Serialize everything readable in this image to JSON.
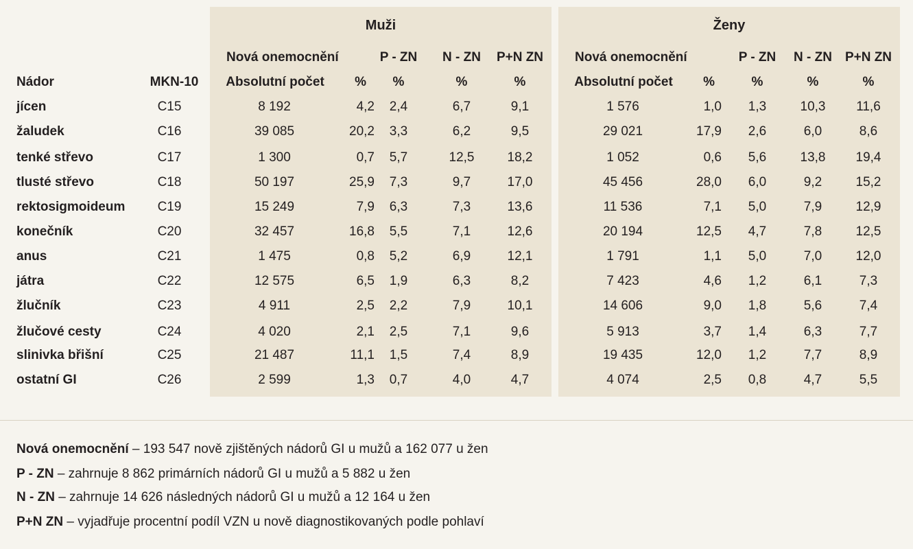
{
  "groups": {
    "men": "Muži",
    "women": "Ženy"
  },
  "subheaders": {
    "new_cases": "Nová onemocnění",
    "p_zn": "P - ZN",
    "n_zn": "N - ZN",
    "pn_zn": "P+N ZN"
  },
  "columns": {
    "tumor": "Nádor",
    "mkn": "MKN-10",
    "abs": "Absolutní počet",
    "pct": "%"
  },
  "rows": [
    {
      "tumor": "jícen",
      "code": "C15",
      "m_abs": "8 192",
      "m_pct": "4,2",
      "m_p": "2,4",
      "m_n": "6,7",
      "m_pn": "9,1",
      "w_abs": "1 576",
      "w_pct": "1,0",
      "w_p": "1,3",
      "w_n": "10,3",
      "w_pn": "11,6"
    },
    {
      "tumor": "žaludek",
      "code": "C16",
      "m_abs": "39 085",
      "m_pct": "20,2",
      "m_p": "3,3",
      "m_n": "6,2",
      "m_pn": "9,5",
      "w_abs": "29 021",
      "w_pct": "17,9",
      "w_p": "2,6",
      "w_n": "6,0",
      "w_pn": "8,6"
    },
    {
      "tumor": "tenké střevo",
      "code": "C17",
      "m_abs": "1 300",
      "m_pct": "0,7",
      "m_p": "5,7",
      "m_n": "12,5",
      "m_pn": "18,2",
      "w_abs": "1 052",
      "w_pct": "0,6",
      "w_p": "5,6",
      "w_n": "13,8",
      "w_pn": "19,4"
    },
    {
      "tumor": "tlusté střevo",
      "code": "C18",
      "m_abs": "50 197",
      "m_pct": "25,9",
      "m_p": "7,3",
      "m_n": "9,7",
      "m_pn": "17,0",
      "w_abs": "45 456",
      "w_pct": "28,0",
      "w_p": "6,0",
      "w_n": "9,2",
      "w_pn": "15,2"
    },
    {
      "tumor": "rektosigmoideum",
      "code": "C19",
      "m_abs": "15 249",
      "m_pct": "7,9",
      "m_p": "6,3",
      "m_n": "7,3",
      "m_pn": "13,6",
      "w_abs": "11 536",
      "w_pct": "7,1",
      "w_p": "5,0",
      "w_n": "7,9",
      "w_pn": "12,9"
    },
    {
      "tumor": "konečník",
      "code": "C20",
      "m_abs": "32 457",
      "m_pct": "16,8",
      "m_p": "5,5",
      "m_n": "7,1",
      "m_pn": "12,6",
      "w_abs": "20 194",
      "w_pct": "12,5",
      "w_p": "4,7",
      "w_n": "7,8",
      "w_pn": "12,5"
    },
    {
      "tumor": "anus",
      "code": "C21",
      "m_abs": "1 475",
      "m_pct": "0,8",
      "m_p": "5,2",
      "m_n": "6,9",
      "m_pn": "12,1",
      "w_abs": "1 791",
      "w_pct": "1,1",
      "w_p": "5,0",
      "w_n": "7,0",
      "w_pn": "12,0"
    },
    {
      "tumor": "játra",
      "code": "C22",
      "m_abs": "12 575",
      "m_pct": "6,5",
      "m_p": "1,9",
      "m_n": "6,3",
      "m_pn": "8,2",
      "w_abs": "7 423",
      "w_pct": "4,6",
      "w_p": "1,2",
      "w_n": "6,1",
      "w_pn": "7,3"
    },
    {
      "tumor": "žlučník",
      "code": "C23",
      "m_abs": "4 911",
      "m_pct": "2,5",
      "m_p": "2,2",
      "m_n": "7,9",
      "m_pn": "10,1",
      "w_abs": "14 606",
      "w_pct": "9,0",
      "w_p": "1,8",
      "w_n": "5,6",
      "w_pn": "7,4"
    },
    {
      "tumor": "žlučové cesty",
      "code": "C24",
      "m_abs": "4 020",
      "m_pct": "2,1",
      "m_p": "2,5",
      "m_n": "7,1",
      "m_pn": "9,6",
      "w_abs": "5 913",
      "w_pct": "3,7",
      "w_p": "1,4",
      "w_n": "6,3",
      "w_pn": "7,7"
    },
    {
      "tumor": "slinivka břišní",
      "code": "C25",
      "m_abs": "21 487",
      "m_pct": "11,1",
      "m_p": "1,5",
      "m_n": "7,4",
      "m_pn": "8,9",
      "w_abs": "19 435",
      "w_pct": "12,0",
      "w_p": "1,2",
      "w_n": "7,7",
      "w_pn": "8,9"
    },
    {
      "tumor": "ostatní GI",
      "code": "C26",
      "m_abs": "2 599",
      "m_pct": "1,3",
      "m_p": "0,7",
      "m_n": "4,0",
      "m_pn": "4,7",
      "w_abs": "4 074",
      "w_pct": "2,5",
      "w_p": "0,8",
      "w_n": "4,7",
      "w_pn": "5,5"
    }
  ],
  "legend": [
    {
      "term": "Nová onemocnění",
      "text": " – 193 547 nově zjištěných nádorů GI u mužů a 162 077 u žen"
    },
    {
      "term": "P - ZN",
      "text": " – zahrnuje 8 862 primárních nádorů GI u mužů a 5 882 u žen"
    },
    {
      "term": "N - ZN",
      "text": " – zahrnuje 14 626 následných nádorů GI u mužů a 12 164 u žen"
    },
    {
      "term": "P+N ZN",
      "text": " – vyjadřuje procentní podíl VZN u nově diagnostikovaných podle pohlaví"
    }
  ]
}
